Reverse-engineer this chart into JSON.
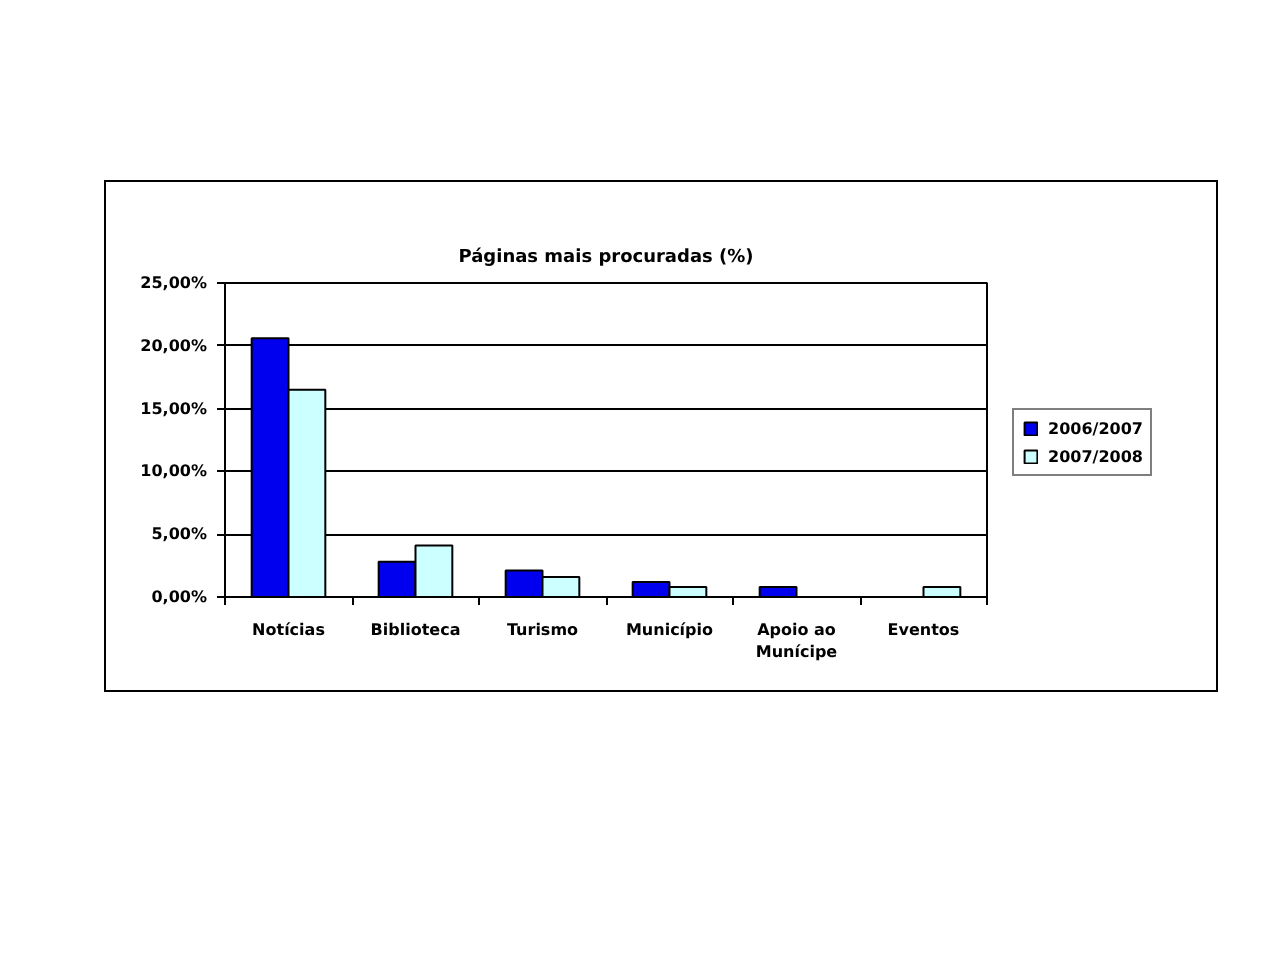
{
  "chart_data": {
    "type": "bar",
    "title": "Páginas mais procuradas (%)",
    "categories": [
      "Notícias",
      "Biblioteca",
      "Turismo",
      "Município",
      "Apoio ao Munícipe",
      "Eventos"
    ],
    "series": [
      {
        "name": "2006/2007",
        "color": "#0000ee",
        "values": [
          20.6,
          2.8,
          2.1,
          1.2,
          0.8,
          null
        ]
      },
      {
        "name": "2007/2008",
        "color": "#ccffff",
        "values": [
          16.5,
          4.1,
          1.6,
          0.8,
          null,
          0.8
        ]
      }
    ],
    "ylim": [
      0,
      25
    ],
    "yticks": [
      {
        "value": 0,
        "label": "0,00%"
      },
      {
        "value": 5,
        "label": "5,00%"
      },
      {
        "value": 10,
        "label": "10,00%"
      },
      {
        "value": 15,
        "label": "15,00%"
      },
      {
        "value": 20,
        "label": "20,00%"
      },
      {
        "value": 25,
        "label": "25,00%"
      }
    ],
    "grid": "y",
    "legend": "right"
  }
}
